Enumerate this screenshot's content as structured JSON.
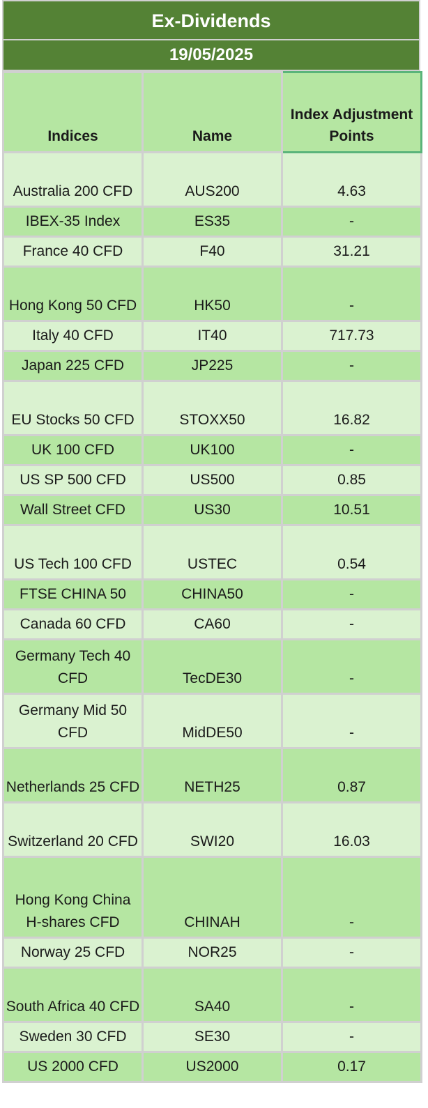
{
  "title": "Ex-Dividends",
  "date": "19/05/2025",
  "headers": {
    "indices": "Indices",
    "name": "Name",
    "adjustment": "Index Adjustment Points"
  },
  "rows": [
    {
      "index": "Australia 200 CFD",
      "name": "AUS200",
      "points": "4.63"
    },
    {
      "index": "IBEX-35 Index",
      "name": "ES35",
      "points": "-"
    },
    {
      "index": "France 40 CFD",
      "name": "F40",
      "points": "31.21"
    },
    {
      "index": "Hong Kong 50 CFD",
      "name": "HK50",
      "points": "-"
    },
    {
      "index": "Italy 40 CFD",
      "name": "IT40",
      "points": "717.73"
    },
    {
      "index": "Japan 225 CFD",
      "name": "JP225",
      "points": "-"
    },
    {
      "index": "EU Stocks 50 CFD",
      "name": "STOXX50",
      "points": "16.82"
    },
    {
      "index": "UK 100 CFD",
      "name": "UK100",
      "points": "-"
    },
    {
      "index": "US SP 500 CFD",
      "name": "US500",
      "points": "0.85"
    },
    {
      "index": "Wall Street CFD",
      "name": "US30",
      "points": "10.51"
    },
    {
      "index": "US Tech 100 CFD",
      "name": "USTEC",
      "points": "0.54"
    },
    {
      "index": "FTSE CHINA 50",
      "name": "CHINA50",
      "points": "-"
    },
    {
      "index": "Canada 60 CFD",
      "name": "CA60",
      "points": "-"
    },
    {
      "index": "Germany Tech 40 CFD",
      "name": "TecDE30",
      "points": "-"
    },
    {
      "index": "Germany Mid 50 CFD",
      "name": "MidDE50",
      "points": "-"
    },
    {
      "index": "Netherlands 25 CFD",
      "name": "NETH25",
      "points": "0.87"
    },
    {
      "index": "Switzerland 20 CFD",
      "name": "SWI20",
      "points": "16.03"
    },
    {
      "index": "Hong Kong China H-shares CFD",
      "name": "CHINAH",
      "points": "-"
    },
    {
      "index": "Norway 25 CFD",
      "name": "NOR25",
      "points": "-"
    },
    {
      "index": "South Africa 40 CFD",
      "name": "SA40",
      "points": "-"
    },
    {
      "index": "Sweden 30 CFD",
      "name": "SE30",
      "points": "-"
    },
    {
      "index": "US 2000 CFD",
      "name": "US2000",
      "points": "0.17"
    }
  ],
  "colors": {
    "banner": "#548235",
    "row_light": "#daf2d0",
    "row_dark": "#b5e6a2",
    "grid": "#d0d0d0"
  }
}
